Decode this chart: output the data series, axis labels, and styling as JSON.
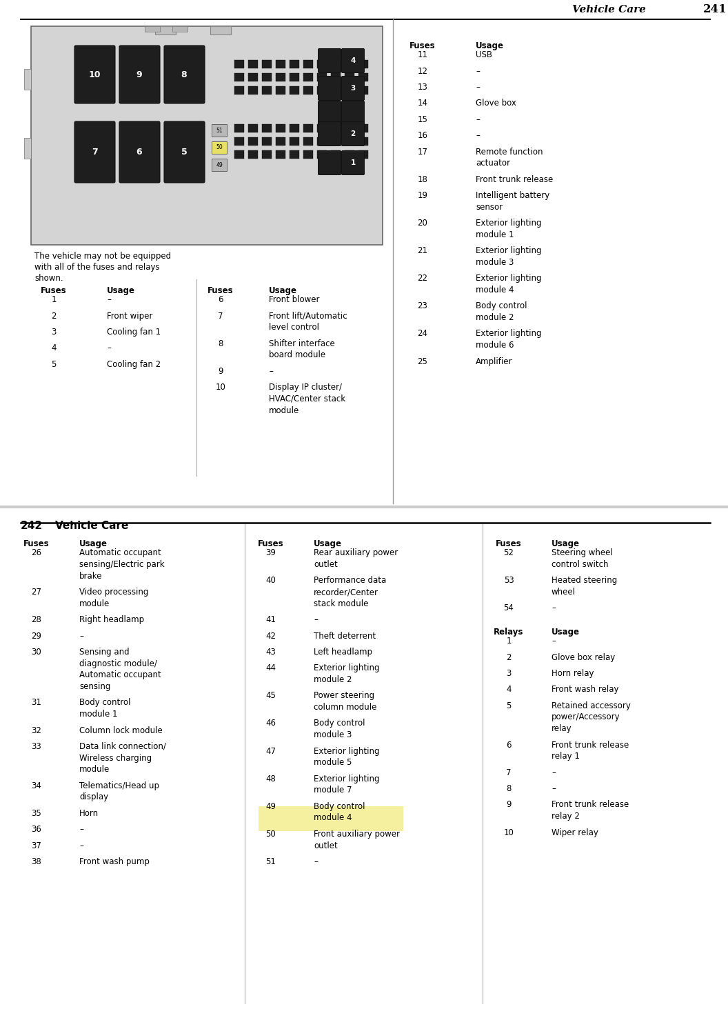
{
  "bg_color": "#ffffff",
  "page1_header_text": "Vehicle Care",
  "page1_header_num": "241",
  "page2_header_num": "242",
  "page2_header_text": "Vehicle Care",
  "note_text": "The vehicle may not be equipped\nwith all of the fuses and relays\nshown.",
  "page1_col1": {
    "header": [
      "Fuses",
      "Usage"
    ],
    "rows": [
      [
        "1",
        "–"
      ],
      [
        "2",
        "Front wiper"
      ],
      [
        "3",
        "Cooling fan 1"
      ],
      [
        "4",
        "–"
      ],
      [
        "5",
        "Cooling fan 2"
      ]
    ]
  },
  "page1_col2": {
    "header": [
      "Fuses",
      "Usage"
    ],
    "rows": [
      [
        "6",
        "Front blower"
      ],
      [
        "7",
        "Front lift/Automatic\nlevel control"
      ],
      [
        "8",
        "Shifter interface\nboard module"
      ],
      [
        "9",
        "–"
      ],
      [
        "10",
        "Display IP cluster/\nHVAC/Center stack\nmodule"
      ]
    ]
  },
  "page1_col3": {
    "header": [
      "Fuses",
      "Usage"
    ],
    "rows": [
      [
        "11",
        "USB"
      ],
      [
        "12",
        "–"
      ],
      [
        "13",
        "–"
      ],
      [
        "14",
        "Glove box"
      ],
      [
        "15",
        "–"
      ],
      [
        "16",
        "–"
      ],
      [
        "17",
        "Remote function\nactuator"
      ],
      [
        "18",
        "Front trunk release"
      ],
      [
        "19",
        "Intelligent battery\nsensor"
      ],
      [
        "20",
        "Exterior lighting\nmodule 1"
      ],
      [
        "21",
        "Exterior lighting\nmodule 3"
      ],
      [
        "22",
        "Exterior lighting\nmodule 4"
      ],
      [
        "23",
        "Body control\nmodule 2"
      ],
      [
        "24",
        "Exterior lighting\nmodule 6"
      ],
      [
        "25",
        "Amplifier"
      ]
    ]
  },
  "page2_col1": {
    "header": [
      "Fuses",
      "Usage"
    ],
    "rows": [
      [
        "26",
        "Automatic occupant\nsensing/Electric park\nbrake"
      ],
      [
        "27",
        "Video processing\nmodule"
      ],
      [
        "28",
        "Right headlamp"
      ],
      [
        "29",
        "–"
      ],
      [
        "30",
        "Sensing and\ndiagnostic module/\nAutomatic occupant\nsensing"
      ],
      [
        "31",
        "Body control\nmodule 1"
      ],
      [
        "32",
        "Column lock module"
      ],
      [
        "33",
        "Data link connection/\nWireless charging\nmodule"
      ],
      [
        "34",
        "Telematics/Head up\ndisplay"
      ],
      [
        "35",
        "Horn"
      ],
      [
        "36",
        "–"
      ],
      [
        "37",
        "–"
      ],
      [
        "38",
        "Front wash pump"
      ]
    ]
  },
  "page2_col2": {
    "header": [
      "Fuses",
      "Usage"
    ],
    "rows": [
      [
        "39",
        "Rear auxiliary power\noutlet"
      ],
      [
        "40",
        "Performance data\nrecorder/Center\nstack module"
      ],
      [
        "41",
        "–"
      ],
      [
        "42",
        "Theft deterrent"
      ],
      [
        "43",
        "Left headlamp"
      ],
      [
        "44",
        "Exterior lighting\nmodule 2"
      ],
      [
        "45",
        "Power steering\ncolumn module"
      ],
      [
        "46",
        "Body control\nmodule 3"
      ],
      [
        "47",
        "Exterior lighting\nmodule 5"
      ],
      [
        "48",
        "Exterior lighting\nmodule 7"
      ],
      [
        "49",
        "Body control\nmodule 4"
      ],
      [
        "50",
        "Front auxiliary power\noutlet"
      ],
      [
        "51",
        "–"
      ]
    ]
  },
  "page2_col3": {
    "header": [
      "Fuses",
      "Usage"
    ],
    "rows": [
      [
        "52",
        "Steering wheel\ncontrol switch"
      ],
      [
        "53",
        "Heated steering\nwheel"
      ],
      [
        "54",
        "–"
      ]
    ]
  },
  "page2_relays": {
    "header": [
      "Relays",
      "Usage"
    ],
    "rows": [
      [
        "1",
        "–"
      ],
      [
        "2",
        "Glove box relay"
      ],
      [
        "3",
        "Horn relay"
      ],
      [
        "4",
        "Front wash relay"
      ],
      [
        "5",
        "Retained accessory\npower/Accessory\nrelay"
      ],
      [
        "6",
        "Front trunk release\nrelay 1"
      ],
      [
        "7",
        "–"
      ],
      [
        "8",
        "–"
      ],
      [
        "9",
        "Front trunk release\nrelay 2"
      ],
      [
        "10",
        "Wiper relay"
      ]
    ]
  },
  "highlight_fuse": "50",
  "highlight_color": "#f5f0a0"
}
